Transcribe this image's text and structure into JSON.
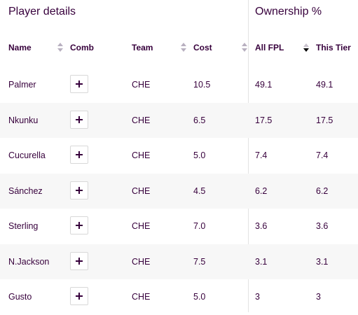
{
  "groups": {
    "player_details": "Player details",
    "ownership": "Ownership %"
  },
  "columns": {
    "name": "Name",
    "comb": "Comb",
    "team": "Team",
    "cost": "Cost",
    "all_fpl": "All FPL",
    "this_tier": "This Tier"
  },
  "icons": {
    "sort": "sort-icon",
    "sort_active": "sort-descending-icon",
    "add": "plus-icon"
  },
  "rows": [
    {
      "name": "Palmer",
      "team": "CHE",
      "cost": "10.5",
      "all_fpl": "49.1",
      "this_tier": "49.1"
    },
    {
      "name": "Nkunku",
      "team": "CHE",
      "cost": "6.5",
      "all_fpl": "17.5",
      "this_tier": "17.5"
    },
    {
      "name": "Cucurella",
      "team": "CHE",
      "cost": "5.0",
      "all_fpl": "7.4",
      "this_tier": "7.4"
    },
    {
      "name": "Sánchez",
      "team": "CHE",
      "cost": "4.5",
      "all_fpl": "6.2",
      "this_tier": "6.2"
    },
    {
      "name": "Sterling",
      "team": "CHE",
      "cost": "7.0",
      "all_fpl": "3.6",
      "this_tier": "3.6"
    },
    {
      "name": "N.Jackson",
      "team": "CHE",
      "cost": "7.5",
      "all_fpl": "3.1",
      "this_tier": "3.1"
    },
    {
      "name": "Gusto",
      "team": "CHE",
      "cost": "5.0",
      "all_fpl": "3",
      "this_tier": "3"
    }
  ]
}
